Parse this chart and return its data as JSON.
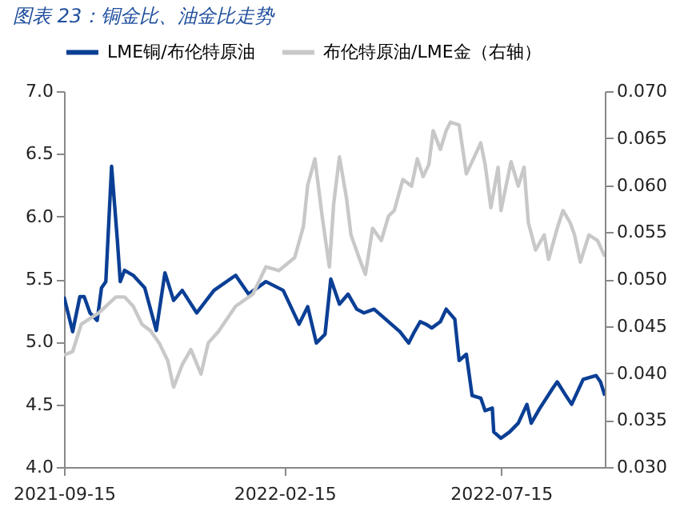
{
  "chart_data": {
    "type": "line",
    "title": "图表 23：铜金比、油金比走势",
    "xlim": [
      "2021-09-15",
      "2022-09-25"
    ],
    "xticks": [
      "2021-09-15",
      "2022-02-15",
      "2022-07-15"
    ],
    "ylim": [
      4.0,
      7.0
    ],
    "yticks": [
      {
        "value": 4.0,
        "label": "4.0"
      },
      4.5,
      {
        "value": 5.0,
        "label": "5.0"
      },
      5.5,
      {
        "value": 6.0,
        "label": "6.0"
      },
      6.5,
      {
        "value": 7.0,
        "label": "7.0"
      }
    ],
    "y2lim": [
      0.03,
      0.07
    ],
    "y2ticks": [
      {
        "value": 0.03,
        "label": "0.030"
      },
      {
        "value": 0.035,
        "label": "0.035"
      },
      {
        "value": 0.04,
        "label": "0.040"
      },
      {
        "value": 0.045,
        "label": "0.045"
      },
      {
        "value": 0.05,
        "label": "0.050"
      },
      {
        "value": 0.055,
        "label": "0.055"
      },
      {
        "value": 0.06,
        "label": "0.060"
      },
      {
        "value": 0.065,
        "label": "0.065"
      },
      {
        "value": 0.07,
        "label": "0.070"
      }
    ],
    "grid": false,
    "legend": "top",
    "series": [
      {
        "name": "LME铜/布伦特原油",
        "color": "#0b3f95",
        "axis": "y",
        "x": [
          "2021-09-15",
          "2021-09-21",
          "2021-09-26",
          "2021-09-29",
          "2021-10-03",
          "2021-10-08",
          "2021-10-11",
          "2021-10-14",
          "2021-10-18",
          "2021-10-22",
          "2021-10-24",
          "2021-10-27",
          "2021-11-02",
          "2021-11-10",
          "2021-11-18",
          "2021-11-24",
          "2021-11-30",
          "2021-12-06",
          "2021-12-16",
          "2021-12-28",
          "2022-01-12",
          "2022-01-21",
          "2022-02-02",
          "2022-02-14",
          "2022-02-25",
          "2022-03-03",
          "2022-03-09",
          "2022-03-15",
          "2022-03-19",
          "2022-03-25",
          "2022-03-31",
          "2022-04-06",
          "2022-04-11",
          "2022-04-18",
          "2022-04-26",
          "2022-05-06",
          "2022-05-12",
          "2022-05-16",
          "2022-05-20",
          "2022-05-24",
          "2022-05-28",
          "2022-06-03",
          "2022-06-07",
          "2022-06-13",
          "2022-06-16",
          "2022-06-21",
          "2022-06-25",
          "2022-07-01",
          "2022-07-04",
          "2022-07-09",
          "2022-07-10",
          "2022-07-15",
          "2022-07-21",
          "2022-07-27",
          "2022-08-02",
          "2022-08-05",
          "2022-08-11",
          "2022-08-20",
          "2022-08-23",
          "2022-08-29",
          "2022-09-02",
          "2022-09-10",
          "2022-09-19",
          "2022-09-22",
          "2022-09-25"
        ],
        "values": [
          5.36,
          5.08,
          5.36,
          5.36,
          5.23,
          5.17,
          5.43,
          5.48,
          6.4,
          5.81,
          5.48,
          5.57,
          5.53,
          5.43,
          5.09,
          5.55,
          5.33,
          5.41,
          5.23,
          5.41,
          5.53,
          5.38,
          5.48,
          5.41,
          5.14,
          5.28,
          4.99,
          5.06,
          5.5,
          5.3,
          5.38,
          5.26,
          5.23,
          5.26,
          5.18,
          5.08,
          4.99,
          5.08,
          5.16,
          5.14,
          5.11,
          5.16,
          5.26,
          5.18,
          4.85,
          4.9,
          4.57,
          4.55,
          4.45,
          4.47,
          4.28,
          4.23,
          4.28,
          4.35,
          4.5,
          4.35,
          4.47,
          4.63,
          4.68,
          4.57,
          4.5,
          4.7,
          4.73,
          4.68,
          4.57
        ]
      },
      {
        "name": "布伦特原油/LME金（右轴）",
        "color": "#c8c8c8",
        "axis": "y2",
        "x": [
          "2021-09-15",
          "2021-09-21",
          "2021-09-27",
          "2021-10-09",
          "2021-10-21",
          "2021-10-27",
          "2021-11-02",
          "2021-11-08",
          "2021-11-14",
          "2021-11-20",
          "2021-11-26",
          "2021-11-30",
          "2021-12-06",
          "2021-12-12",
          "2021-12-19",
          "2021-12-24",
          "2021-12-31",
          "2022-01-12",
          "2022-01-24",
          "2022-02-02",
          "2022-02-11",
          "2022-02-22",
          "2022-02-28",
          "2022-03-03",
          "2022-03-08",
          "2022-03-13",
          "2022-03-18",
          "2022-03-21",
          "2022-03-25",
          "2022-03-30",
          "2022-04-02",
          "2022-04-08",
          "2022-04-12",
          "2022-04-17",
          "2022-04-23",
          "2022-04-28",
          "2022-05-02",
          "2022-05-08",
          "2022-05-14",
          "2022-05-18",
          "2022-05-22",
          "2022-05-26",
          "2022-05-29",
          "2022-06-03",
          "2022-06-07",
          "2022-06-10",
          "2022-06-16",
          "2022-06-21",
          "2022-06-25",
          "2022-07-01",
          "2022-07-04",
          "2022-07-08",
          "2022-07-13",
          "2022-07-15",
          "2022-07-22",
          "2022-07-27",
          "2022-07-31",
          "2022-08-03",
          "2022-08-08",
          "2022-08-14",
          "2022-08-17",
          "2022-08-23",
          "2022-08-27",
          "2022-09-01",
          "2022-09-04",
          "2022-09-08",
          "2022-09-14",
          "2022-09-20",
          "2022-09-25"
        ],
        "values": [
          0.0419,
          0.0423,
          0.0452,
          0.0464,
          0.0481,
          0.0481,
          0.0471,
          0.0452,
          0.0445,
          0.0432,
          0.0413,
          0.0385,
          0.0409,
          0.0425,
          0.0399,
          0.0432,
          0.0444,
          0.0471,
          0.0484,
          0.0513,
          0.0509,
          0.0523,
          0.0556,
          0.06,
          0.0628,
          0.0567,
          0.0513,
          0.058,
          0.063,
          0.0585,
          0.0547,
          0.0521,
          0.0505,
          0.0554,
          0.0541,
          0.0567,
          0.0573,
          0.0606,
          0.0599,
          0.0628,
          0.0609,
          0.0622,
          0.0658,
          0.0638,
          0.0658,
          0.0667,
          0.0664,
          0.0612,
          0.0625,
          0.0645,
          0.0622,
          0.0576,
          0.0619,
          0.0573,
          0.0625,
          0.0599,
          0.0619,
          0.056,
          0.0531,
          0.0547,
          0.0521,
          0.0554,
          0.0573,
          0.056,
          0.0547,
          0.0518,
          0.0547,
          0.0541,
          0.0524
        ]
      }
    ]
  }
}
